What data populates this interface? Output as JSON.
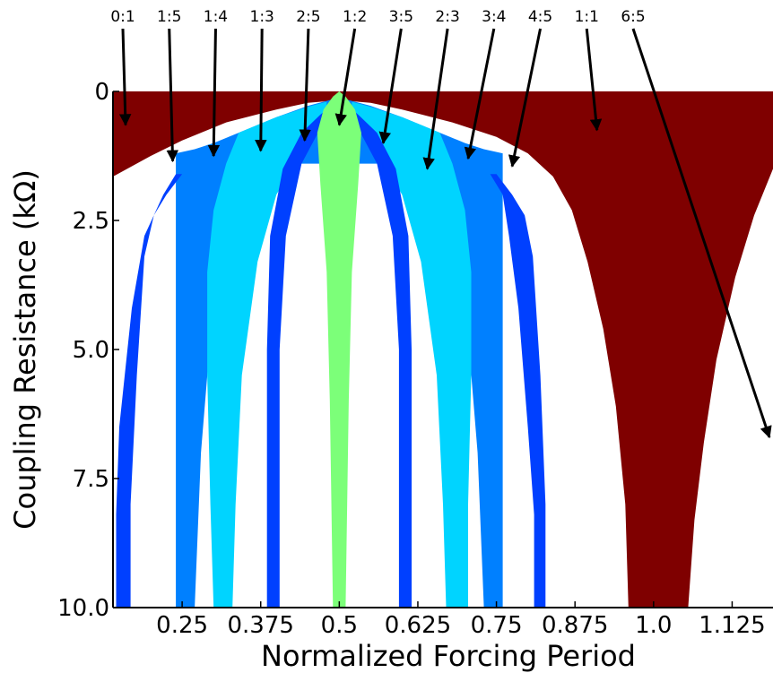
{
  "chart_data": {
    "type": "area",
    "title": "",
    "xlabel": "Normalized Forcing Period",
    "ylabel": "Coupling Resistance (kΩ)",
    "xlim": [
      0.14,
      1.19
    ],
    "ylim": [
      0,
      10.0
    ],
    "y_inverted": true,
    "grid": false,
    "xticks": [
      {
        "value": 0.25,
        "label": "0.25"
      },
      {
        "value": 0.375,
        "label": "0.375"
      },
      {
        "value": 0.5,
        "label": "0.5"
      },
      {
        "value": 0.625,
        "label": "0.625"
      },
      {
        "value": 0.75,
        "label": "0.75"
      },
      {
        "value": 0.875,
        "label": "0.875"
      },
      {
        "value": 1.0,
        "label": "1.0"
      },
      {
        "value": 1.125,
        "label": "1.125"
      }
    ],
    "yticks": [
      {
        "value": 0,
        "label": "0"
      },
      {
        "value": 2.5,
        "label": "2.5"
      },
      {
        "value": 5.0,
        "label": "5.0"
      },
      {
        "value": 7.5,
        "label": "7.5"
      },
      {
        "value": 10.0,
        "label": "10.0"
      }
    ],
    "colors": {
      "0:1": "#7f0000",
      "1:1": "#7f0000",
      "1:2": "#7cff79",
      "1:3": "#00d4ff",
      "2:3": "#00d4ff",
      "1:4": "#0080ff",
      "3:4": "#0080ff",
      "1:5": "#0040ff",
      "2:5": "#0040ff",
      "3:5": "#0040ff",
      "4:5": "#0040ff"
    },
    "series": [
      {
        "name": "1:1",
        "points": [
          [
            0.14,
            0
          ],
          [
            1.19,
            0
          ],
          [
            1.19,
            1.5
          ],
          [
            1.16,
            2.4
          ],
          [
            1.13,
            3.6
          ],
          [
            1.1,
            5.2
          ],
          [
            1.08,
            6.8
          ],
          [
            1.065,
            8.3
          ],
          [
            1.055,
            10.0
          ],
          [
            0.96,
            10.0
          ],
          [
            0.955,
            8.0
          ],
          [
            0.94,
            6.1
          ],
          [
            0.92,
            4.6
          ],
          [
            0.895,
            3.3
          ],
          [
            0.87,
            2.3
          ],
          [
            0.84,
            1.65
          ],
          [
            0.8,
            1.2
          ],
          [
            0.75,
            0.88
          ],
          [
            0.68,
            0.6
          ],
          [
            0.6,
            0.35
          ],
          [
            0.55,
            0.22
          ],
          [
            0.5,
            0.17
          ],
          [
            0.45,
            0.22
          ],
          [
            0.4,
            0.35
          ],
          [
            0.32,
            0.6
          ],
          [
            0.25,
            0.95
          ],
          [
            0.2,
            1.25
          ],
          [
            0.14,
            1.65
          ]
        ]
      },
      {
        "name": "1:4",
        "points": [
          [
            0.24,
            1.2
          ],
          [
            0.27,
            1.12
          ],
          [
            0.3,
            1.0
          ],
          [
            0.35,
            0.75
          ],
          [
            0.4,
            0.5
          ],
          [
            0.45,
            0.28
          ],
          [
            0.5,
            0.12
          ],
          [
            0.55,
            0.28
          ],
          [
            0.6,
            0.5
          ],
          [
            0.65,
            0.75
          ],
          [
            0.7,
            1.0
          ],
          [
            0.73,
            1.12
          ],
          [
            0.76,
            1.2
          ],
          [
            0.76,
            10.0
          ],
          [
            0.73,
            10.0
          ],
          [
            0.72,
            7.0
          ],
          [
            0.7,
            4.0
          ],
          [
            0.67,
            2.5
          ],
          [
            0.65,
            1.4
          ],
          [
            0.35,
            1.4
          ],
          [
            0.33,
            2.5
          ],
          [
            0.3,
            4.0
          ],
          [
            0.28,
            7.0
          ],
          [
            0.27,
            10.0
          ],
          [
            0.24,
            10.0
          ]
        ]
      },
      {
        "name": "1:5",
        "points": [
          [
            0.24,
            1.6
          ],
          [
            0.22,
            2.0
          ],
          [
            0.19,
            2.8
          ],
          [
            0.17,
            4.2
          ],
          [
            0.15,
            6.5
          ],
          [
            0.145,
            8.2
          ],
          [
            0.145,
            10.0
          ],
          [
            0.168,
            10.0
          ],
          [
            0.168,
            8.0
          ],
          [
            0.178,
            5.5
          ],
          [
            0.19,
            3.2
          ],
          [
            0.205,
            2.4
          ],
          [
            0.225,
            2.0
          ],
          [
            0.25,
            1.6
          ]
        ]
      },
      {
        "name": "4:5",
        "points": [
          [
            0.75,
            1.6
          ],
          [
            0.775,
            2.0
          ],
          [
            0.795,
            2.4
          ],
          [
            0.808,
            3.2
          ],
          [
            0.82,
            5.5
          ],
          [
            0.828,
            8.0
          ],
          [
            0.828,
            10.0
          ],
          [
            0.81,
            10.0
          ],
          [
            0.81,
            8.2
          ],
          [
            0.8,
            6.5
          ],
          [
            0.785,
            4.2
          ],
          [
            0.77,
            2.8
          ],
          [
            0.76,
            2.0
          ],
          [
            0.74,
            1.6
          ]
        ]
      },
      {
        "name": "1:3",
        "points": [
          [
            0.34,
            0.8
          ],
          [
            0.37,
            0.65
          ],
          [
            0.4,
            0.5
          ],
          [
            0.45,
            0.3
          ],
          [
            0.48,
            0.2
          ],
          [
            0.48,
            0.6
          ],
          [
            0.44,
            1.2
          ],
          [
            0.4,
            2.0
          ],
          [
            0.37,
            3.3
          ],
          [
            0.345,
            5.5
          ],
          [
            0.335,
            8.0
          ],
          [
            0.33,
            10.0
          ],
          [
            0.3,
            10.0
          ],
          [
            0.295,
            8.0
          ],
          [
            0.29,
            5.5
          ],
          [
            0.29,
            3.5
          ],
          [
            0.3,
            2.3
          ],
          [
            0.32,
            1.4
          ]
        ]
      },
      {
        "name": "2:3",
        "points": [
          [
            0.66,
            0.8
          ],
          [
            0.63,
            0.65
          ],
          [
            0.6,
            0.5
          ],
          [
            0.55,
            0.3
          ],
          [
            0.52,
            0.2
          ],
          [
            0.52,
            0.6
          ],
          [
            0.56,
            1.2
          ],
          [
            0.6,
            2.0
          ],
          [
            0.63,
            3.3
          ],
          [
            0.655,
            5.5
          ],
          [
            0.665,
            8.0
          ],
          [
            0.67,
            10.0
          ],
          [
            0.705,
            10.0
          ],
          [
            0.705,
            8.0
          ],
          [
            0.71,
            5.5
          ],
          [
            0.71,
            3.5
          ],
          [
            0.7,
            2.3
          ],
          [
            0.68,
            1.4
          ]
        ]
      },
      {
        "name": "2:5",
        "points": [
          [
            0.44,
            0.8
          ],
          [
            0.47,
            0.45
          ],
          [
            0.49,
            0.25
          ],
          [
            0.475,
            0.6
          ],
          [
            0.44,
            1.4
          ],
          [
            0.415,
            2.8
          ],
          [
            0.405,
            5.0
          ],
          [
            0.405,
            10.0
          ],
          [
            0.385,
            10.0
          ],
          [
            0.385,
            5.0
          ],
          [
            0.39,
            2.8
          ],
          [
            0.41,
            1.5
          ]
        ]
      },
      {
        "name": "3:5",
        "points": [
          [
            0.56,
            0.8
          ],
          [
            0.53,
            0.45
          ],
          [
            0.51,
            0.25
          ],
          [
            0.525,
            0.6
          ],
          [
            0.56,
            1.4
          ],
          [
            0.585,
            2.8
          ],
          [
            0.595,
            5.0
          ],
          [
            0.595,
            10.0
          ],
          [
            0.615,
            10.0
          ],
          [
            0.615,
            5.0
          ],
          [
            0.61,
            2.8
          ],
          [
            0.59,
            1.5
          ]
        ]
      },
      {
        "name": "1:2",
        "points": [
          [
            0.49,
            0.1
          ],
          [
            0.5,
            0.0
          ],
          [
            0.51,
            0.1
          ],
          [
            0.525,
            0.35
          ],
          [
            0.535,
            0.8
          ],
          [
            0.53,
            1.8
          ],
          [
            0.52,
            3.5
          ],
          [
            0.515,
            6.0
          ],
          [
            0.51,
            10.0
          ],
          [
            0.49,
            10.0
          ],
          [
            0.485,
            6.0
          ],
          [
            0.48,
            3.5
          ],
          [
            0.47,
            1.8
          ],
          [
            0.465,
            0.8
          ],
          [
            0.475,
            0.35
          ]
        ]
      }
    ],
    "annotations": [
      {
        "text": "0:1",
        "target": [
          0.16,
          0.65
        ]
      },
      {
        "text": "1:5",
        "target": [
          0.235,
          1.35
        ]
      },
      {
        "text": "1:4",
        "target": [
          0.3,
          1.25
        ]
      },
      {
        "text": "1:3",
        "target": [
          0.375,
          1.15
        ]
      },
      {
        "text": "2:5",
        "target": [
          0.445,
          0.95
        ]
      },
      {
        "text": "1:2",
        "target": [
          0.5,
          0.65
        ]
      },
      {
        "text": "3:5",
        "target": [
          0.57,
          1.0
        ]
      },
      {
        "text": "2:3",
        "target": [
          0.64,
          1.5
        ]
      },
      {
        "text": "3:4",
        "target": [
          0.705,
          1.3
        ]
      },
      {
        "text": "4:5",
        "target": [
          0.775,
          1.45
        ]
      },
      {
        "text": "1:1",
        "target": [
          0.91,
          0.75
        ]
      },
      {
        "text": "6:5",
        "target": [
          1.19,
          6.7
        ]
      }
    ]
  }
}
